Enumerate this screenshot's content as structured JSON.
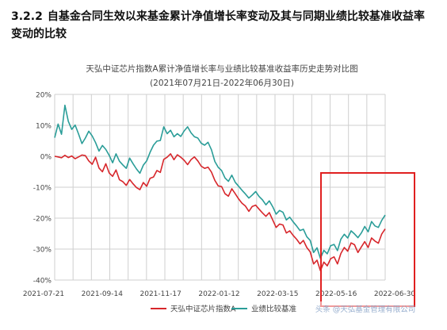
{
  "section": {
    "number": "3.2.2",
    "title": "自基金合同生效以来基金累计净值增长率变动及其与同期业绩比较基准收益率变动的比较"
  },
  "watermark": "头条 @天弘基金管理有限公司",
  "colors": {
    "fund": "#d7262b",
    "benchmark": "#2a9d98",
    "grid": "#cfcfcf",
    "highlight_box": "#e02020",
    "axis_text": "#444444"
  },
  "chart_data": {
    "type": "line",
    "title": "天弘中证芯片指数A累计净值增长率与业绩比较基准收益率历史走势对比图",
    "subtitle": "(2021年07月21日-2022年06月30日)",
    "x_ticks": [
      "2021-07-21",
      "2021-09-14",
      "2021-11-17",
      "2022-01-12",
      "2022-03-15",
      "2022-05-16",
      "2022-06-30"
    ],
    "y_ticks": [
      "20%",
      "10%",
      "0%",
      "-10%",
      "-20%",
      "-30%",
      "-40%"
    ],
    "ylim": [
      -40,
      20
    ],
    "grid": true,
    "legend_position": "bottom",
    "series": [
      {
        "name": "天弘中证芯片指数A",
        "color": "#d7262b",
        "values": [
          0,
          -0.2,
          -0.5,
          0.3,
          -0.4,
          0.1,
          -0.8,
          -0.2,
          0.4,
          0.2,
          -1.5,
          -2.6,
          -0.3,
          -3.8,
          -5,
          -2.4,
          -5.4,
          -6.5,
          -4.4,
          -7.6,
          -8.2,
          -9.4,
          -7.5,
          -8.9,
          -10.1,
          -10.8,
          -8.5,
          -9.7,
          -7.1,
          -6.7,
          -4.6,
          -5.2,
          -1,
          -0.3,
          0.8,
          -1.1,
          0.5,
          -0.3,
          -1.3,
          -2.7,
          -1.1,
          -0.2,
          -1.5,
          -3.2,
          -3.9,
          -3.5,
          -5.1,
          -7.8,
          -9.6,
          -9.8,
          -12.1,
          -12.9,
          -10.5,
          -12.1,
          -13.8,
          -15.2,
          -16.1,
          -17.8,
          -16.2,
          -15.8,
          -17.1,
          -18.3,
          -19.4,
          -18.2,
          -20.6,
          -23,
          -21.9,
          -22.2,
          -24.8,
          -24.1,
          -25.6,
          -26.8,
          -28.3,
          -27.2,
          -29.5,
          -30.9,
          -34.8,
          -33.6,
          -37,
          -34.2,
          -35.4,
          -33.1,
          -32.5,
          -34.8,
          -31.4,
          -29.5,
          -30.7,
          -28,
          -28.6,
          -31.1,
          -29.3,
          -27.6,
          -29.5,
          -26.4,
          -27.4,
          -28.1,
          -25.1,
          -23.5
        ]
      },
      {
        "name": "业绩比较基准",
        "color": "#2a9d98",
        "values": [
          6,
          10.4,
          7.1,
          16.5,
          11.3,
          8.7,
          10.1,
          7.2,
          4.1,
          5.9,
          8.1,
          6.6,
          4.4,
          1.7,
          3.5,
          2.2,
          0.3,
          -2.1,
          0.8,
          -1.6,
          -2.8,
          -3.9,
          -0.6,
          -2.4,
          -4.1,
          -5.5,
          -2.9,
          -1.5,
          1.3,
          3.6,
          4.9,
          5.1,
          9.5,
          7.3,
          8.4,
          6.3,
          7.3,
          6.4,
          8.2,
          9.5,
          7.6,
          6.3,
          5.9,
          4.2,
          3.6,
          4.5,
          2.1,
          -1.7,
          -3.6,
          -4.6,
          -7,
          -8.1,
          -6.1,
          -8.4,
          -9.7,
          -11,
          -12.2,
          -13.5,
          -12.5,
          -11.4,
          -13,
          -14.1,
          -15.7,
          -14.4,
          -16.3,
          -18.7,
          -17.5,
          -18.1,
          -20.6,
          -19.7,
          -21.2,
          -22.5,
          -24,
          -23.6,
          -26,
          -27.2,
          -31.1,
          -29.6,
          -33,
          -30.4,
          -31.5,
          -28.9,
          -28.5,
          -30.5,
          -26.8,
          -25.2,
          -26.4,
          -24.1,
          -25.1,
          -26.3,
          -24.8,
          -22.7,
          -24.4,
          -21.1,
          -22.5,
          -23,
          -20.7,
          -19
        ]
      }
    ]
  }
}
